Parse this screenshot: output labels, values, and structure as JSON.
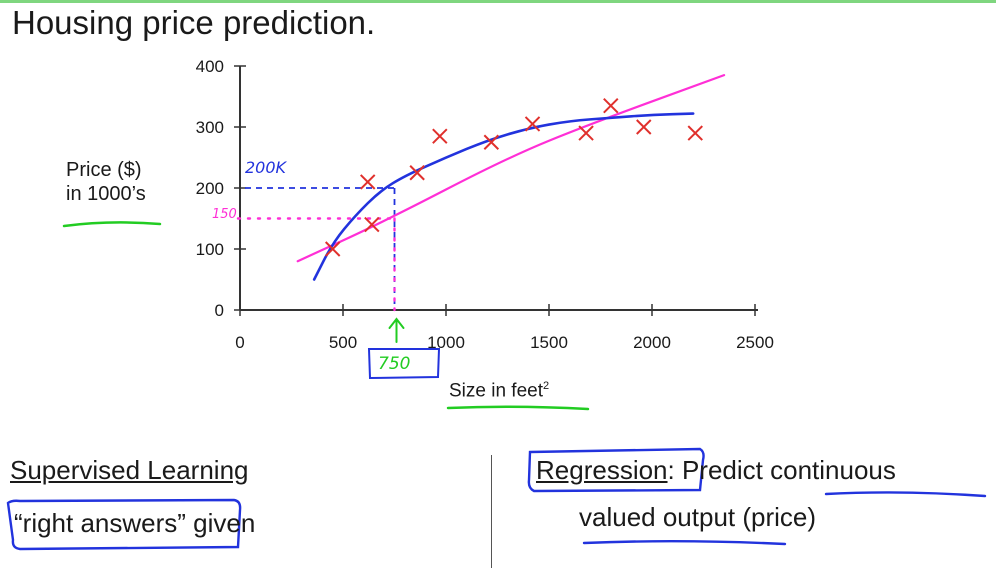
{
  "page": {
    "title": "Housing price prediction."
  },
  "chart_data": {
    "type": "scatter",
    "title": "",
    "xlabel": "Size in feet",
    "xlabel_sup": "2",
    "ylabel_lines": [
      "Price ($)",
      "in 1000’s"
    ],
    "xlim": [
      0,
      2500
    ],
    "ylim": [
      0,
      400
    ],
    "xticks": [
      0,
      500,
      1000,
      1500,
      2000,
      2500
    ],
    "yticks": [
      0,
      100,
      200,
      300,
      400
    ],
    "grid": false,
    "series": [
      {
        "type": "scatter",
        "marker": "x",
        "color": "#e0302c",
        "x": [
          450,
          640,
          620,
          860,
          970,
          1220,
          1420,
          1680,
          1800,
          1960,
          2210
        ],
        "y": [
          100,
          140,
          210,
          225,
          285,
          275,
          305,
          290,
          335,
          300,
          290
        ]
      },
      {
        "type": "line",
        "color": "#ff2fd6",
        "x": [
          280,
          700,
          1300,
          1700,
          2350
        ],
        "y": [
          80,
          145,
          250,
          305,
          385
        ]
      },
      {
        "type": "line",
        "color": "#2233dd",
        "x": [
          360,
          450,
          560,
          680,
          800,
          1000,
          1200,
          1400,
          1600,
          1800,
          2000,
          2200
        ],
        "y": [
          50,
          110,
          155,
          195,
          220,
          250,
          278,
          298,
          310,
          315,
          320,
          322
        ]
      }
    ],
    "annotations": {
      "query_x": 750,
      "query_x_label": "750",
      "blue_prediction": 200,
      "blue_prediction_label": "200K",
      "magenta_prediction": 150,
      "magenta_prediction_label": "150"
    }
  },
  "left_section": {
    "heading": "Supervised Learning",
    "line": "“right answers” given"
  },
  "right_section": {
    "heading": "Regression",
    "line1_rest": ": Predict continuous",
    "line2": "valued output (price)"
  },
  "colors": {
    "data_points": "#e0302c",
    "blue_ink": "#2233dd",
    "magenta_ink": "#ff2fd6",
    "green_ink": "#22cc22"
  }
}
